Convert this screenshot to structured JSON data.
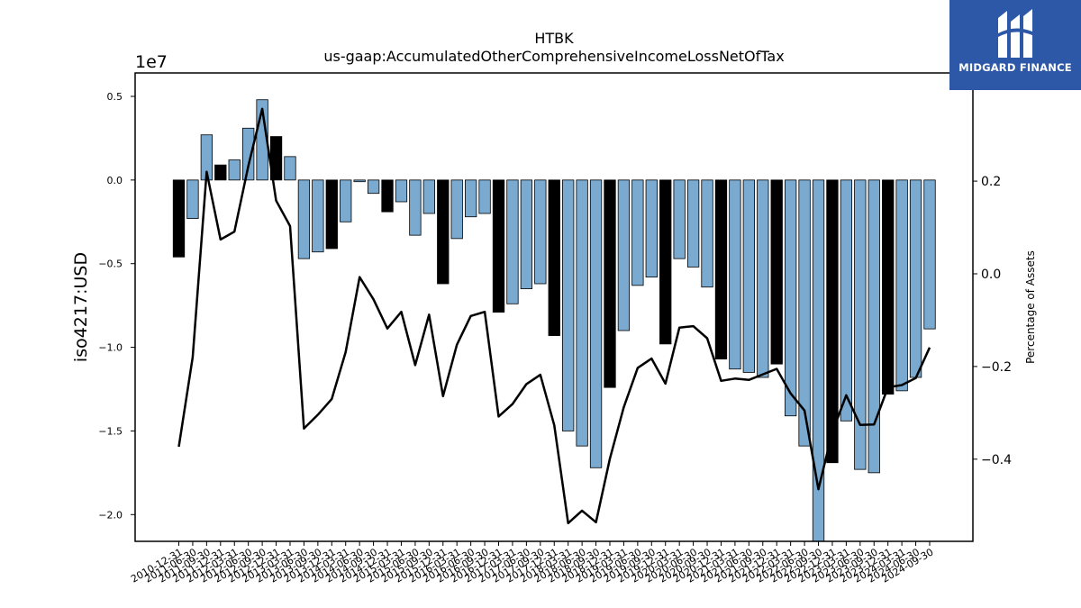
{
  "brand": {
    "name": "MIDGARD FINANCE",
    "bg_color": "#2d58a8"
  },
  "chart_data": {
    "type": "bar",
    "title": "HTBK",
    "subtitle": "us-gaap:AccumulatedOtherComprehensiveIncomeLossNetOfTax",
    "ylabel": "iso4217:USD",
    "y_scale_label": "1e7",
    "y2label": "Percentage of Assets",
    "ylim": [
      -21600000.0,
      6400000.0
    ],
    "y2lim": [
      -0.5773,
      0.4334
    ],
    "yticks": [
      5000000.0,
      0,
      -5000000.0,
      -10000000.0,
      -15000000.0,
      -20000000.0
    ],
    "ytick_labels": [
      "0.5",
      "0.0",
      "−0.5",
      "−1.0",
      "−1.5",
      "−2.0"
    ],
    "y2ticks": [
      0.2,
      0,
      -0.2,
      -0.4
    ],
    "y2tick_labels": [
      "0.2",
      "0.0",
      "−0.2",
      "−0.4"
    ],
    "bar_colors": {
      "annual": "#000000",
      "quarter": "#7aaad0"
    },
    "line_color": "#000000",
    "x_labels": [
      "2010-12-31",
      "2011-06-30",
      "2011-09-30",
      "2011-12-31",
      "2012-03-31",
      "2012-06-30",
      "2012-09-30",
      "2012-12-31",
      "2013-03-31",
      "2013-06-30",
      "2013-09-30",
      "2013-12-31",
      "2014-03-31",
      "2014-06-30",
      "2014-09-30",
      "2014-12-31",
      "2015-03-31",
      "2015-06-30",
      "2015-09-30",
      "2015-12-31",
      "2016-03-31",
      "2016-06-30",
      "2016-09-30",
      "2016-12-31",
      "2017-03-31",
      "2017-06-30",
      "2017-09-30",
      "2017-12-31",
      "2018-03-31",
      "2018-06-30",
      "2018-09-30",
      "2018-12-31",
      "2019-03-31",
      "2019-06-30",
      "2019-09-30",
      "2019-12-31",
      "2020-03-31",
      "2020-06-30",
      "2020-09-30",
      "2020-12-31",
      "2021-03-31",
      "2021-06-30",
      "2021-09-30",
      "2021-12-31",
      "2022-03-31",
      "2022-06-30",
      "2022-09-30",
      "2022-12-31",
      "2023-03-31",
      "2023-06-30",
      "2023-09-30",
      "2023-12-31",
      "2024-03-31",
      "2024-06-30",
      "2024-09-30"
    ],
    "bars": [
      {
        "v": -4600000.0,
        "annual": true
      },
      {
        "v": -2300000.0,
        "annual": false
      },
      {
        "v": 2700000.0,
        "annual": false
      },
      {
        "v": 900000.0,
        "annual": true
      },
      {
        "v": 1200000.0,
        "annual": false
      },
      {
        "v": 3100000.0,
        "annual": false
      },
      {
        "v": 4800000.0,
        "annual": false
      },
      {
        "v": 2600000.0,
        "annual": true
      },
      {
        "v": 1400000.0,
        "annual": false
      },
      {
        "v": -4700000.0,
        "annual": false
      },
      {
        "v": -4300000.0,
        "annual": false
      },
      {
        "v": -4100000.0,
        "annual": true
      },
      {
        "v": -2500000.0,
        "annual": false
      },
      {
        "v": -100000.0,
        "annual": false
      },
      {
        "v": -800000.0,
        "annual": false
      },
      {
        "v": -1900000.0,
        "annual": true
      },
      {
        "v": -1300000.0,
        "annual": false
      },
      {
        "v": -3300000.0,
        "annual": false
      },
      {
        "v": -2000000.0,
        "annual": false
      },
      {
        "v": -6200000.0,
        "annual": true
      },
      {
        "v": -3500000.0,
        "annual": false
      },
      {
        "v": -2200000.0,
        "annual": false
      },
      {
        "v": -2000000.0,
        "annual": false
      },
      {
        "v": -7900000.0,
        "annual": true
      },
      {
        "v": -7400000.0,
        "annual": false
      },
      {
        "v": -6500000.0,
        "annual": false
      },
      {
        "v": -6200000.0,
        "annual": false
      },
      {
        "v": -9300000.0,
        "annual": true
      },
      {
        "v": -15000000.0,
        "annual": false
      },
      {
        "v": -15900000.0,
        "annual": false
      },
      {
        "v": -17200000.0,
        "annual": false
      },
      {
        "v": -12400000.0,
        "annual": true
      },
      {
        "v": -9000000.0,
        "annual": false
      },
      {
        "v": -6300000.0,
        "annual": false
      },
      {
        "v": -5800000.0,
        "annual": false
      },
      {
        "v": -9800000.0,
        "annual": true
      },
      {
        "v": -4700000.0,
        "annual": false
      },
      {
        "v": -5200000.0,
        "annual": false
      },
      {
        "v": -6400000.0,
        "annual": false
      },
      {
        "v": -10700000.0,
        "annual": true
      },
      {
        "v": -11300000.0,
        "annual": false
      },
      {
        "v": -11500000.0,
        "annual": false
      },
      {
        "v": -11800000.0,
        "annual": false
      },
      {
        "v": -11000000.0,
        "annual": true
      },
      {
        "v": -14100000.0,
        "annual": false
      },
      {
        "v": -15900000.0,
        "annual": false
      },
      {
        "v": -21600000.0,
        "annual": false
      },
      {
        "v": -16900000.0,
        "annual": true
      },
      {
        "v": -14400000.0,
        "annual": false
      },
      {
        "v": -17300000.0,
        "annual": false
      },
      {
        "v": -17500000.0,
        "annual": false
      },
      {
        "v": -12800000.0,
        "annual": true
      },
      {
        "v": -12600000.0,
        "annual": false
      },
      {
        "v": -11800000.0,
        "annual": false
      },
      {
        "v": -8900000.0,
        "annual": false
      }
    ],
    "pct_of_assets": [
      -0.373,
      -0.18,
      0.22,
      0.074,
      0.091,
      0.233,
      0.356,
      0.158,
      0.103,
      -0.334,
      -0.304,
      -0.27,
      -0.169,
      -0.007,
      -0.055,
      -0.118,
      -0.082,
      -0.197,
      -0.088,
      -0.264,
      -0.153,
      -0.091,
      -0.082,
      -0.308,
      -0.281,
      -0.238,
      -0.218,
      -0.327,
      -0.538,
      -0.511,
      -0.536,
      -0.399,
      -0.288,
      -0.203,
      -0.183,
      -0.237,
      -0.116,
      -0.113,
      -0.139,
      -0.231,
      -0.226,
      -0.229,
      -0.217,
      -0.205,
      -0.258,
      -0.295,
      -0.465,
      -0.341,
      -0.262,
      -0.326,
      -0.325,
      -0.245,
      -0.24,
      -0.225,
      -0.159
    ]
  }
}
